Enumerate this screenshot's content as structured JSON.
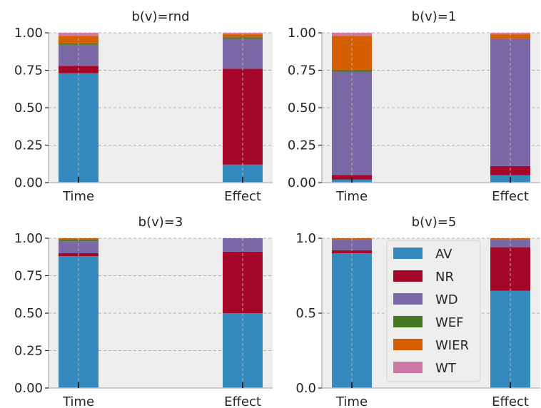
{
  "legend": {
    "items": [
      {
        "label": "AV",
        "color": "#348abd"
      },
      {
        "label": "NR",
        "color": "#a60628"
      },
      {
        "label": "WD",
        "color": "#7a68a6"
      },
      {
        "label": "WEF",
        "color": "#467821"
      },
      {
        "label": "WIER",
        "color": "#d55e00"
      },
      {
        "label": "WT",
        "color": "#cc79a7"
      }
    ]
  },
  "chart_data": [
    {
      "type": "bar",
      "stacked": true,
      "title": "b(v)=rnd",
      "categories": [
        "Time",
        "Effect"
      ],
      "ylim": [
        0,
        1.0
      ],
      "yticks": [
        "0.00",
        "0.25",
        "0.50",
        "0.75",
        "1.00"
      ],
      "grid": true,
      "series": [
        {
          "name": "AV",
          "values": [
            0.73,
            0.12
          ]
        },
        {
          "name": "NR",
          "values": [
            0.05,
            0.64
          ]
        },
        {
          "name": "WD",
          "values": [
            0.14,
            0.2
          ]
        },
        {
          "name": "WEF",
          "values": [
            0.01,
            0.01
          ]
        },
        {
          "name": "WIER",
          "values": [
            0.05,
            0.02
          ]
        },
        {
          "name": "WT",
          "values": [
            0.02,
            0.01
          ]
        }
      ]
    },
    {
      "type": "bar",
      "stacked": true,
      "title": "b(v)=1",
      "categories": [
        "Time",
        "Effect"
      ],
      "ylim": [
        0,
        1.0
      ],
      "yticks": [
        "0.00",
        "0.25",
        "0.50",
        "0.75",
        "1.00"
      ],
      "grid": true,
      "series": [
        {
          "name": "AV",
          "values": [
            0.02,
            0.05
          ]
        },
        {
          "name": "NR",
          "values": [
            0.03,
            0.06
          ]
        },
        {
          "name": "WD",
          "values": [
            0.69,
            0.85
          ]
        },
        {
          "name": "WEF",
          "values": [
            0.01,
            0.0
          ]
        },
        {
          "name": "WIER",
          "values": [
            0.23,
            0.03
          ]
        },
        {
          "name": "WT",
          "values": [
            0.02,
            0.01
          ]
        }
      ]
    },
    {
      "type": "bar",
      "stacked": true,
      "title": "b(v)=3",
      "categories": [
        "Time",
        "Effect"
      ],
      "ylim": [
        0,
        1.0
      ],
      "yticks": [
        "0.00",
        "0.25",
        "0.50",
        "0.75",
        "1.00"
      ],
      "grid": true,
      "series": [
        {
          "name": "AV",
          "values": [
            0.88,
            0.5
          ]
        },
        {
          "name": "NR",
          "values": [
            0.02,
            0.41
          ]
        },
        {
          "name": "WD",
          "values": [
            0.08,
            0.09
          ]
        },
        {
          "name": "WEF",
          "values": [
            0.01,
            0.0
          ]
        },
        {
          "name": "WIER",
          "values": [
            0.01,
            0.0
          ]
        },
        {
          "name": "WT",
          "values": [
            0.0,
            0.0
          ]
        }
      ]
    },
    {
      "type": "bar",
      "stacked": true,
      "title": "b(v)=5",
      "categories": [
        "Time",
        "Effect"
      ],
      "ylim": [
        0,
        1.0
      ],
      "yticks": [
        "0.0",
        "0.5",
        "1.0"
      ],
      "grid": true,
      "legend_position": "center",
      "series": [
        {
          "name": "AV",
          "values": [
            0.9,
            0.65
          ]
        },
        {
          "name": "NR",
          "values": [
            0.02,
            0.29
          ]
        },
        {
          "name": "WD",
          "values": [
            0.07,
            0.05
          ]
        },
        {
          "name": "WEF",
          "values": [
            0.0,
            0.0
          ]
        },
        {
          "name": "WIER",
          "values": [
            0.01,
            0.01
          ]
        },
        {
          "name": "WT",
          "values": [
            0.0,
            0.0
          ]
        }
      ]
    }
  ]
}
